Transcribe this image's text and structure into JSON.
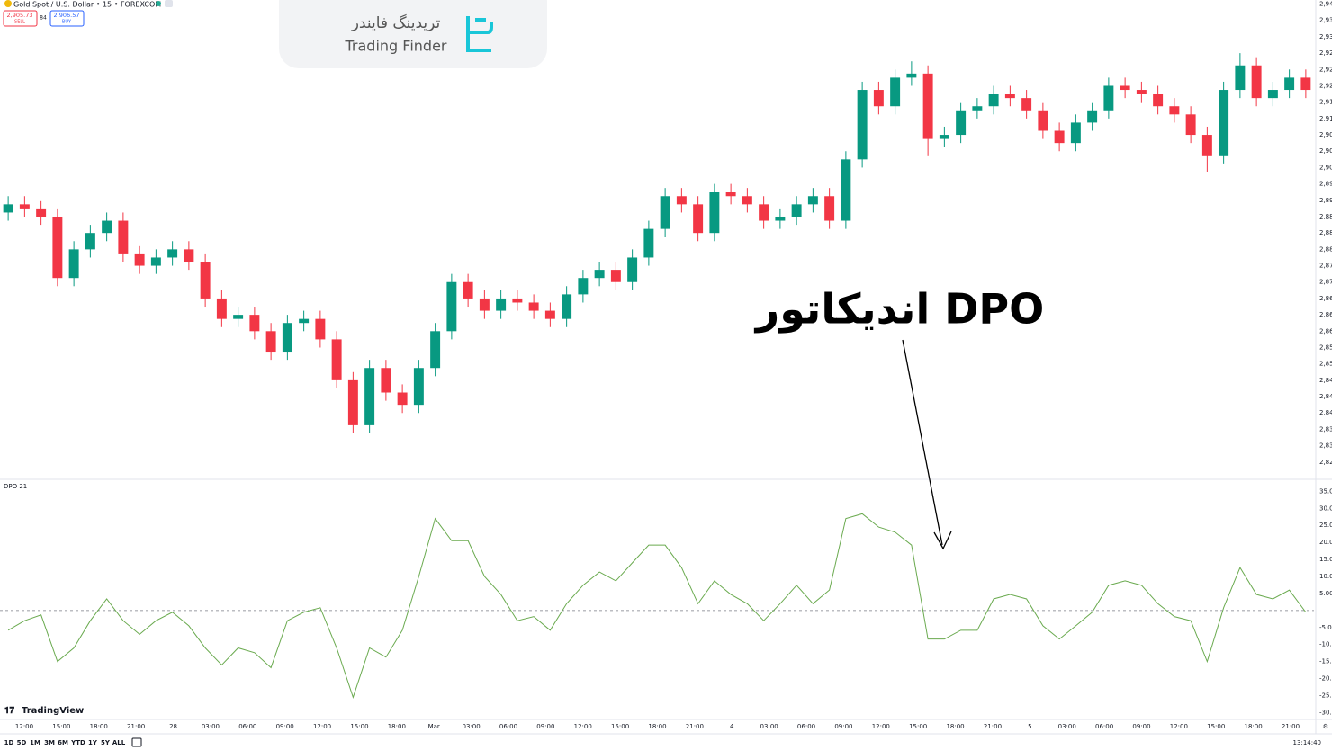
{
  "header": {
    "symbol": "Gold Spot / U.S. Dollar • 15 • FOREXCOM",
    "sell_price": "2,905.73",
    "sell_label": "SELL",
    "spread": "84",
    "buy_price": "2,906.57",
    "buy_label": "BUY"
  },
  "logo": {
    "persian": "تریدینگ فایندر",
    "latin": "Trading Finder"
  },
  "annotation": "اندیکاتور DPO",
  "brand": "TradingView",
  "x_labels": [
    "12:00",
    "15:00",
    "18:00",
    "21:00",
    "28",
    "03:00",
    "06:00",
    "09:00",
    "12:00",
    "15:00",
    "18:00",
    "Mar",
    "03:00",
    "06:00",
    "09:00",
    "12:00",
    "15:00",
    "18:00",
    "21:00",
    "4",
    "03:00",
    "06:00",
    "09:00",
    "12:00",
    "15:00",
    "18:00",
    "21:00",
    "5",
    "03:00",
    "06:00",
    "09:00",
    "12:00",
    "15:00",
    "18:00",
    "21:00"
  ],
  "toolbar": {
    "ranges": [
      "1D",
      "5D",
      "1M",
      "3M",
      "6M",
      "YTD",
      "1Y",
      "5Y",
      "ALL"
    ],
    "clock": "13:14:40"
  },
  "chart_data": [
    {
      "type": "candlestick",
      "up_color": "#089981",
      "down_color": "#f23645",
      "ylim": [
        2824,
        2941
      ],
      "yticks": [
        {
          "value": 2940,
          "label": "2,94"
        },
        {
          "value": 2936,
          "label": "2,93"
        },
        {
          "value": 2932,
          "label": "2,93"
        },
        {
          "value": 2928,
          "label": "2,92"
        },
        {
          "value": 2924,
          "label": "2,92"
        },
        {
          "value": 2920,
          "label": "2,92"
        },
        {
          "value": 2916,
          "label": "2,91"
        },
        {
          "value": 2912,
          "label": "2,91"
        },
        {
          "value": 2908,
          "label": "2,90"
        },
        {
          "value": 2904,
          "label": "2,90"
        },
        {
          "value": 2900,
          "label": "2,90"
        },
        {
          "value": 2896,
          "label": "2,89"
        },
        {
          "value": 2892,
          "label": "2,89"
        },
        {
          "value": 2888,
          "label": "2,88"
        },
        {
          "value": 2884,
          "label": "2,88"
        },
        {
          "value": 2880,
          "label": "2,88"
        },
        {
          "value": 2876,
          "label": "2,87"
        },
        {
          "value": 2872,
          "label": "2,87"
        },
        {
          "value": 2868,
          "label": "2,86"
        },
        {
          "value": 2864,
          "label": "2,86"
        },
        {
          "value": 2860,
          "label": "2,86"
        },
        {
          "value": 2856,
          "label": "2,85"
        },
        {
          "value": 2852,
          "label": "2,85"
        },
        {
          "value": 2848,
          "label": "2,84"
        },
        {
          "value": 2844,
          "label": "2,84"
        },
        {
          "value": 2840,
          "label": "2,84"
        },
        {
          "value": 2836,
          "label": "2,83"
        },
        {
          "value": 2832,
          "label": "2,83"
        },
        {
          "value": 2828,
          "label": "2,82"
        }
      ],
      "open": [
        2889,
        2891,
        2890,
        2888,
        2873,
        2880,
        2884,
        2887,
        2879,
        2876,
        2878,
        2880,
        2877,
        2868,
        2863,
        2864,
        2860,
        2855,
        2862,
        2863,
        2858,
        2848,
        2837,
        2851,
        2845,
        2842,
        2851,
        2860,
        2872,
        2868,
        2865,
        2868,
        2867,
        2865,
        2863,
        2869,
        2873,
        2875,
        2872,
        2878,
        2885,
        2893,
        2891,
        2884,
        2894,
        2893,
        2891,
        2887,
        2888,
        2891,
        2893,
        2887,
        2902,
        2919,
        2915,
        2922,
        2923,
        2907,
        2908,
        2914,
        2915,
        2918,
        2917,
        2914,
        2909,
        2906,
        2911,
        2914,
        2920,
        2919,
        2918,
        2915,
        2913,
        2908,
        2903,
        2919,
        2925,
        2917,
        2919,
        2922
      ],
      "high": [
        2893,
        2893,
        2892,
        2890,
        2882,
        2886,
        2889,
        2889,
        2881,
        2880,
        2882,
        2882,
        2879,
        2870,
        2866,
        2866,
        2862,
        2864,
        2865,
        2865,
        2860,
        2850,
        2853,
        2853,
        2847,
        2853,
        2862,
        2874,
        2874,
        2870,
        2870,
        2870,
        2869,
        2867,
        2871,
        2875,
        2877,
        2877,
        2880,
        2887,
        2895,
        2895,
        2893,
        2896,
        2896,
        2895,
        2893,
        2890,
        2893,
        2895,
        2895,
        2904,
        2921,
        2921,
        2924,
        2926,
        2925,
        2910,
        2916,
        2917,
        2920,
        2920,
        2919,
        2916,
        2911,
        2913,
        2916,
        2922,
        2922,
        2921,
        2920,
        2917,
        2915,
        2910,
        2921,
        2928,
        2927,
        2921,
        2924,
        2924
      ],
      "low": [
        2887,
        2888,
        2886,
        2871,
        2871,
        2878,
        2882,
        2877,
        2874,
        2874,
        2876,
        2875,
        2866,
        2861,
        2861,
        2858,
        2853,
        2853,
        2860,
        2856,
        2846,
        2835,
        2835,
        2843,
        2840,
        2840,
        2849,
        2858,
        2866,
        2863,
        2863,
        2865,
        2863,
        2861,
        2861,
        2867,
        2871,
        2870,
        2870,
        2876,
        2883,
        2889,
        2882,
        2882,
        2891,
        2889,
        2885,
        2885,
        2886,
        2889,
        2885,
        2885,
        2900,
        2913,
        2913,
        2920,
        2903,
        2905,
        2906,
        2912,
        2913,
        2915,
        2912,
        2907,
        2904,
        2904,
        2909,
        2912,
        2917,
        2916,
        2913,
        2911,
        2906,
        2899,
        2901,
        2917,
        2915,
        2915,
        2917,
        2917
      ],
      "close": [
        2891,
        2890,
        2888,
        2873,
        2880,
        2884,
        2887,
        2879,
        2876,
        2878,
        2880,
        2877,
        2868,
        2863,
        2864,
        2860,
        2855,
        2862,
        2863,
        2858,
        2848,
        2837,
        2851,
        2845,
        2842,
        2851,
        2860,
        2872,
        2868,
        2865,
        2868,
        2867,
        2865,
        2863,
        2869,
        2873,
        2875,
        2872,
        2878,
        2885,
        2893,
        2891,
        2884,
        2894,
        2893,
        2891,
        2887,
        2888,
        2891,
        2893,
        2887,
        2902,
        2919,
        2915,
        2922,
        2923,
        2907,
        2908,
        2914,
        2915,
        2918,
        2917,
        2914,
        2909,
        2906,
        2911,
        2914,
        2920,
        2919,
        2918,
        2915,
        2913,
        2908,
        2903,
        2919,
        2925,
        2917,
        2919,
        2922,
        2919
      ]
    },
    {
      "type": "line",
      "title": "DPO 21",
      "color": "#6aaa4f",
      "ylim": [
        -32,
        38
      ],
      "yticks": [
        {
          "value": 35,
          "label": "35.0"
        },
        {
          "value": 30,
          "label": "30.0"
        },
        {
          "value": 25,
          "label": "25.0"
        },
        {
          "value": 20,
          "label": "20.0"
        },
        {
          "value": 15,
          "label": "15.0"
        },
        {
          "value": 10,
          "label": "10.0"
        },
        {
          "value": 5,
          "label": "5.00"
        },
        {
          "value": -5,
          "label": "-5.00"
        },
        {
          "value": -10,
          "label": "-10.0"
        },
        {
          "value": -15,
          "label": "-15.0"
        },
        {
          "value": -20,
          "label": "-20.0"
        },
        {
          "value": -25,
          "label": "-25.0"
        },
        {
          "value": -30,
          "label": "-30.0"
        }
      ],
      "values": [
        -5.8,
        -3,
        -1.3,
        -15,
        -11,
        -3,
        3.4,
        -3,
        -7,
        -3,
        -0.5,
        -4.5,
        -11,
        -16,
        -11,
        -12.4,
        -16.8,
        -3,
        -0.5,
        0.8,
        -11,
        -25.5,
        -11,
        -13.7,
        -5.8,
        10,
        27,
        20.5,
        20.5,
        10,
        4.7,
        -3,
        -1.8,
        -5.8,
        2,
        7.4,
        11.3,
        8.7,
        14,
        19.2,
        19.2,
        12.6,
        2,
        8.7,
        4.7,
        2,
        -3,
        2,
        7.4,
        2,
        6,
        27,
        28.4,
        24.5,
        23,
        19.2,
        -8.4,
        -8.4,
        -5.8,
        -5.8,
        3.4,
        4.7,
        3.4,
        -4.5,
        -8.4,
        -4.5,
        -0.5,
        7.4,
        8.7,
        7.4,
        2,
        -1.8,
        -3,
        -15,
        0.8,
        12.6,
        4.7,
        3.4,
        6,
        -0.5
      ]
    }
  ]
}
